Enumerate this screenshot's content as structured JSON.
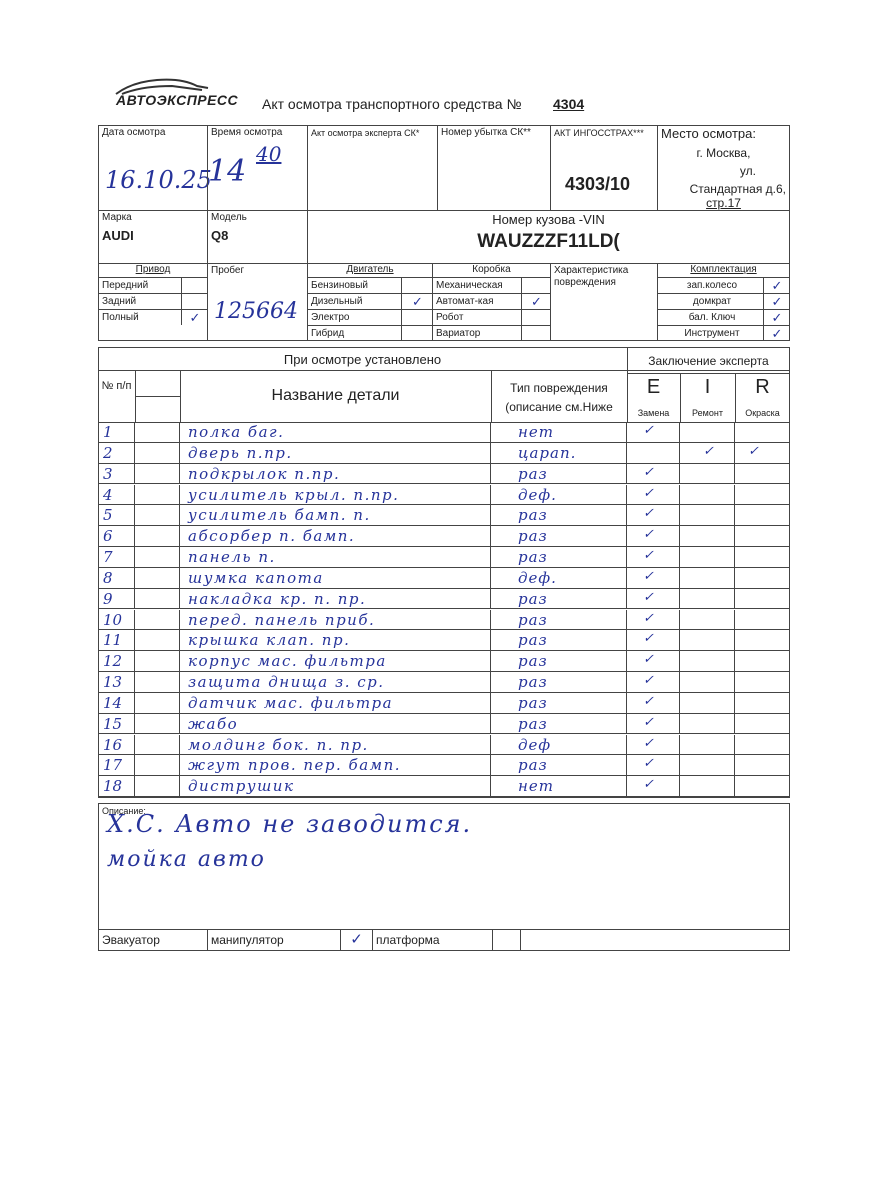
{
  "header": {
    "logo_text": "АВТОЭКСПРЕСС",
    "title": "Акт осмотра транспортного средства №",
    "act_number": "4304"
  },
  "info": {
    "date_label": "Дата осмотра",
    "date_value": "16.10.25",
    "time_label": "Время осмотра",
    "time_hours": "14",
    "time_minutes": "40",
    "expert_act_label": "Акт осмотра эксперта СК*",
    "loss_number_label": "Номер убытка СК**",
    "ingos_act_label": "АКТ ИНГОССТРАХ***",
    "ingos_act_value": "4303/10",
    "place_label": "Место осмотра:",
    "place_line1": "г. Москва,",
    "place_line2": "ул.",
    "place_line3": "Стандартная д.6,",
    "place_line4": "стр.17",
    "make_label": "Марка",
    "make_value": "AUDI",
    "model_label": "Модель",
    "model_value": "Q8",
    "vin_label": "Номер кузова -VIN",
    "vin_value": "WAUZZZF11LD(",
    "drive_label": "Привод",
    "drive": [
      {
        "label": "Передний",
        "checked": false
      },
      {
        "label": "Задний",
        "checked": false
      },
      {
        "label": "Полный",
        "checked": true
      }
    ],
    "mileage_label": "Пробег",
    "mileage_value": "125664",
    "engine_label": "Двигатель",
    "engine": [
      {
        "label": "Бензиновый",
        "checked": false
      },
      {
        "label": "Дизельный",
        "checked": true
      },
      {
        "label": "Электро",
        "checked": false
      },
      {
        "label": "Гибрид",
        "checked": false
      }
    ],
    "gearbox_label": "Коробка",
    "gearbox": [
      {
        "label": "Механическая",
        "checked": false
      },
      {
        "label": "Автомат-кая",
        "checked": true
      },
      {
        "label": "Робот",
        "checked": false
      },
      {
        "label": "Вариатор",
        "checked": false
      }
    ],
    "damage_char_label": "Характеристика повреждения",
    "equipment_label": "Комплектация",
    "equipment": [
      {
        "label": "зап.колесо",
        "checked": true
      },
      {
        "label": "домкрат",
        "checked": true
      },
      {
        "label": "бал. Ключ",
        "checked": true
      },
      {
        "label": "Инструмент",
        "checked": true
      }
    ],
    "check_mark": "✓"
  },
  "parts_table": {
    "section_title": "При осмотре установлено",
    "conclusion_title": "Заключение эксперта",
    "col_no": "№ п/п",
    "col_name": "Название детали",
    "col_type_line1": "Тип повреждения",
    "col_type_line2": "(описание см.Ниже",
    "col_e": "E",
    "col_i": "I",
    "col_r": "R",
    "col_e_sub": "Замена",
    "col_i_sub": "Ремонт",
    "col_r_sub": "Окраска",
    "rows": [
      {
        "no": "1",
        "name": "полка баг.",
        "type": "нет",
        "e": true,
        "i": false,
        "r": false
      },
      {
        "no": "2",
        "name": "дверь п.пр.",
        "type": "царап.",
        "e": false,
        "i": true,
        "r": true
      },
      {
        "no": "3",
        "name": "подкрылок п.пр.",
        "type": "раз",
        "e": true,
        "i": false,
        "r": false
      },
      {
        "no": "4",
        "name": "усилитель крыл. п.пр.",
        "type": "деф.",
        "e": true,
        "i": false,
        "r": false
      },
      {
        "no": "5",
        "name": "усилитель бамп. п.",
        "type": "раз",
        "e": true,
        "i": false,
        "r": false
      },
      {
        "no": "6",
        "name": "абсорбер п. бамп.",
        "type": "раз",
        "e": true,
        "i": false,
        "r": false
      },
      {
        "no": "7",
        "name": "панель п.",
        "type": "раз",
        "e": true,
        "i": false,
        "r": false
      },
      {
        "no": "8",
        "name": "шумка капота",
        "type": "деф.",
        "e": true,
        "i": false,
        "r": false
      },
      {
        "no": "9",
        "name": "накладка кр. п. пр.",
        "type": "раз",
        "e": true,
        "i": false,
        "r": false
      },
      {
        "no": "10",
        "name": "перед. панель приб.",
        "type": "раз",
        "e": true,
        "i": false,
        "r": false
      },
      {
        "no": "11",
        "name": "крышка клап. пр.",
        "type": "раз",
        "e": true,
        "i": false,
        "r": false
      },
      {
        "no": "12",
        "name": "корпус мас. фильтра",
        "type": "раз",
        "e": true,
        "i": false,
        "r": false
      },
      {
        "no": "13",
        "name": "защита днища з. ср.",
        "type": "раз",
        "e": true,
        "i": false,
        "r": false
      },
      {
        "no": "14",
        "name": "датчик мас. фильтра",
        "type": "раз",
        "e": true,
        "i": false,
        "r": false
      },
      {
        "no": "15",
        "name": "жабо",
        "type": "раз",
        "e": true,
        "i": false,
        "r": false
      },
      {
        "no": "16",
        "name": "молдинг бок. п. пр.",
        "type": "деф",
        "e": true,
        "i": false,
        "r": false
      },
      {
        "no": "17",
        "name": "жгут пров. пер. бамп.",
        "type": "раз",
        "e": true,
        "i": false,
        "r": false
      },
      {
        "no": "18",
        "name": "диструшик",
        "type": "нет",
        "e": true,
        "i": false,
        "r": false
      }
    ]
  },
  "description": {
    "label": "Описание:",
    "line1": "Х.С. Авто не заводится.",
    "line2": "мойка авто"
  },
  "tow": {
    "label": "Эвакуатор",
    "manipulator": "манипулятор",
    "manipulator_checked": true,
    "platform": "платформа",
    "platform_checked": false
  },
  "colors": {
    "ink": "#26339a",
    "lines": "#444444"
  }
}
